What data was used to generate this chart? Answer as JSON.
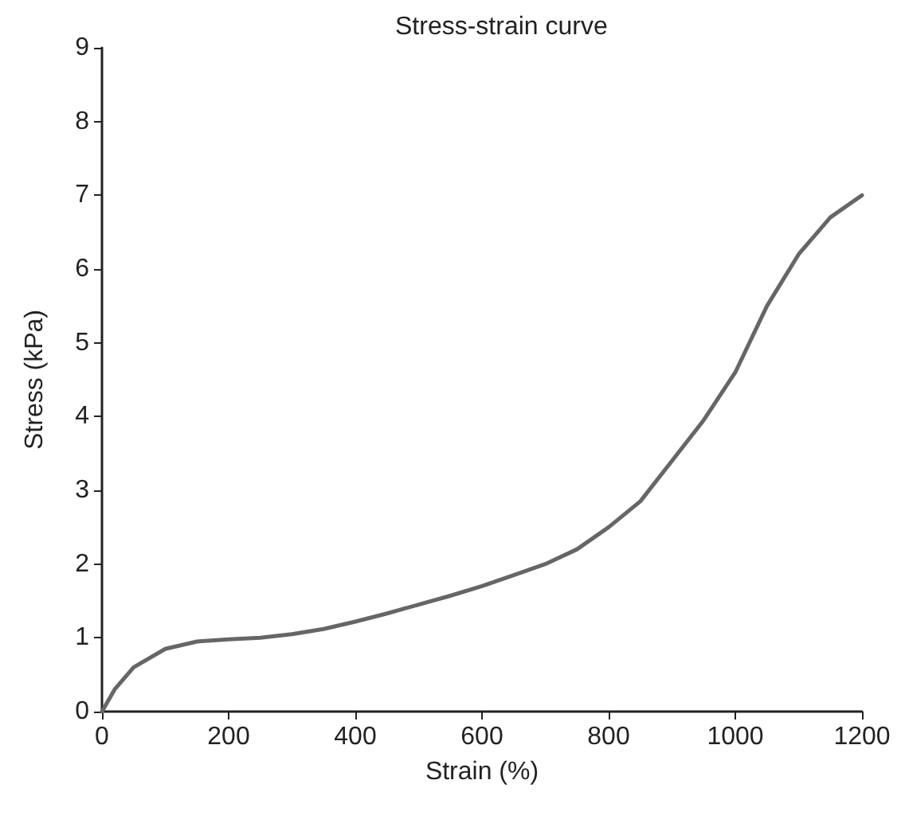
{
  "chart_data": {
    "type": "line",
    "title": "Stress-strain curve",
    "xlabel": "Strain (%)",
    "ylabel": "Stress (kPa)",
    "x": [
      0,
      20,
      50,
      100,
      150,
      200,
      250,
      300,
      350,
      400,
      450,
      500,
      550,
      600,
      650,
      700,
      750,
      800,
      850,
      900,
      950,
      1000,
      1050,
      1100,
      1150,
      1200
    ],
    "series": [
      {
        "color": "#666666",
        "values": [
          0,
          0.3,
          0.6,
          0.85,
          0.95,
          0.98,
          1.0,
          1.05,
          1.12,
          1.22,
          1.33,
          1.45,
          1.57,
          1.7,
          1.85,
          2.0,
          2.2,
          2.5,
          2.85,
          3.4,
          3.95,
          4.6,
          5.5,
          6.2,
          6.7,
          7.0
        ]
      }
    ],
    "xlim": [
      0,
      1200
    ],
    "xticks": [
      0,
      200,
      400,
      600,
      800,
      1000,
      1200
    ],
    "ylim": [
      0,
      9
    ],
    "yticks": [
      0,
      1,
      2,
      3,
      4,
      5,
      6,
      7,
      8,
      9
    ],
    "grid": false,
    "marker": "none",
    "line_style": "solid"
  }
}
